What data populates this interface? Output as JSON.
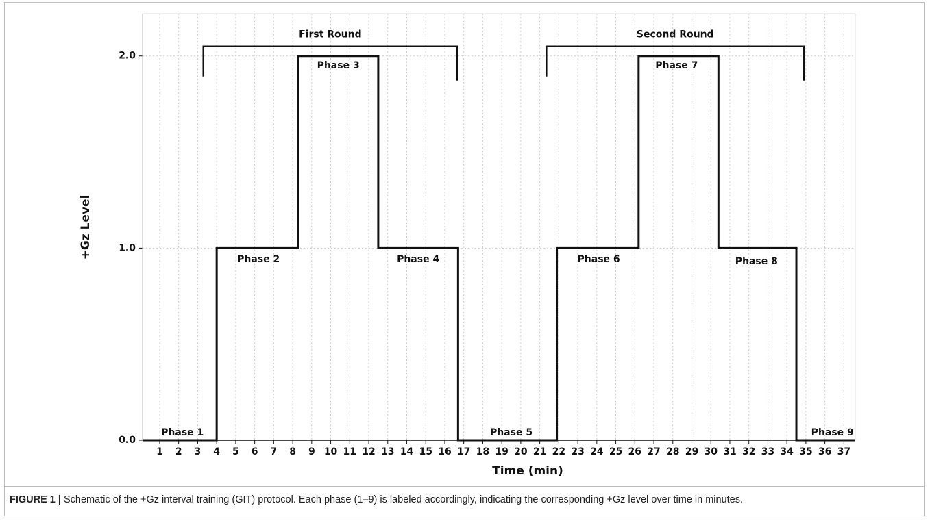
{
  "chart_data": {
    "type": "line",
    "x_label": "Time (min)",
    "y_label": "+Gz Level",
    "xlim": [
      0.1,
      37.6
    ],
    "ylim": [
      0,
      2.22
    ],
    "xticks": [
      1,
      2,
      3,
      4,
      5,
      6,
      7,
      8,
      9,
      10,
      11,
      12,
      13,
      14,
      15,
      16,
      17,
      18,
      19,
      20,
      21,
      22,
      23,
      24,
      25,
      26,
      27,
      28,
      29,
      30,
      31,
      32,
      33,
      34,
      35,
      36,
      37
    ],
    "yticks": [
      {
        "value": 0,
        "label": "0.0"
      },
      {
        "value": 1,
        "label": "1.0"
      },
      {
        "value": 2,
        "label": "2.0"
      }
    ],
    "grid": true,
    "series": [
      {
        "color": "#111111",
        "x": [
          0.1,
          4,
          4,
          8.3,
          8.3,
          12.5,
          12.5,
          16.7,
          16.7,
          21.9,
          21.9,
          26.2,
          26.2,
          30.4,
          30.4,
          34.5,
          34.5,
          37.6
        ],
        "values": [
          0,
          0,
          1,
          1,
          2,
          2,
          1,
          1,
          0,
          0,
          1,
          1,
          2,
          2,
          1,
          1,
          0,
          0
        ]
      }
    ],
    "annotations": [
      {
        "text": "Phase 1",
        "x": 2.2,
        "y": 0.04
      },
      {
        "text": "Phase 2",
        "x": 6.2,
        "y": 0.94
      },
      {
        "text": "Phase 3",
        "x": 10.4,
        "y": 1.95
      },
      {
        "text": "Phase 4",
        "x": 14.6,
        "y": 0.94
      },
      {
        "text": "Phase 5",
        "x": 19.5,
        "y": 0.04
      },
      {
        "text": "Phase 6",
        "x": 24.1,
        "y": 0.94
      },
      {
        "text": "Phase 7",
        "x": 28.2,
        "y": 1.95
      },
      {
        "text": "Phase 8",
        "x": 32.4,
        "y": 0.93
      },
      {
        "text": "Phase 9",
        "x": 36.4,
        "y": 0.04
      }
    ],
    "brackets": [
      {
        "text": "First Round",
        "x": [
          3.3,
          16.65
        ],
        "y": 2.05
      },
      {
        "text": "Second Round",
        "x": [
          21.35,
          34.9
        ],
        "y": 2.05
      }
    ],
    "caption": {
      "label": "FIGURE 1 |",
      "text": "Schematic of the +Gz interval training (GIT) protocol. Each phase (1–9) is labeled accordingly, indicating the corresponding +Gz level over time in minutes."
    }
  }
}
